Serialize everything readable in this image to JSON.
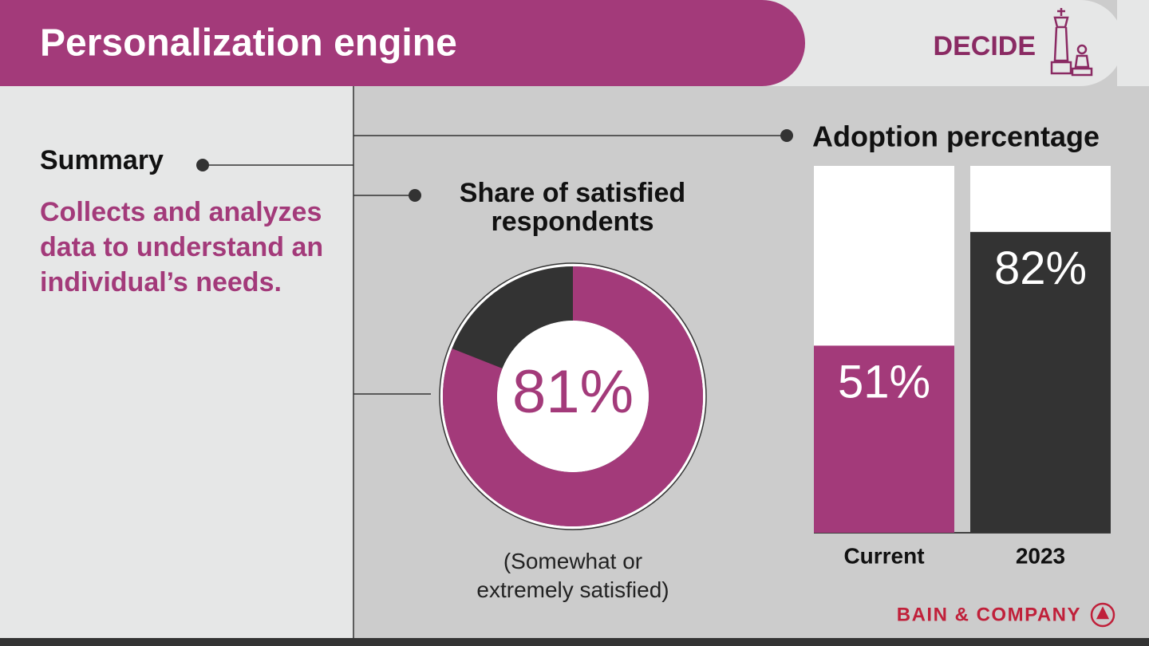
{
  "header": {
    "title": "Personalization engine",
    "badge": "DECIDE"
  },
  "summary": {
    "label": "Summary",
    "text": "Collects and analyzes data to understand an individual’s needs."
  },
  "chart_data": [
    {
      "type": "donut",
      "title": "Share of satisfied respondents",
      "values": [
        81
      ],
      "value_labels": [
        "81%"
      ],
      "ylim": [
        0,
        100
      ],
      "color": "#a33a7a",
      "note": "(Somewhat or extremely satisfied)"
    },
    {
      "type": "bar",
      "title": "Adoption percentage",
      "categories": [
        "Current",
        "2023"
      ],
      "values": [
        51,
        82
      ],
      "value_labels": [
        "51%",
        "82%"
      ],
      "colors": [
        "#a33a7a",
        "#333333"
      ],
      "ylim": [
        0,
        100
      ]
    }
  ],
  "footer": {
    "logo": "BAIN & COMPANY"
  }
}
